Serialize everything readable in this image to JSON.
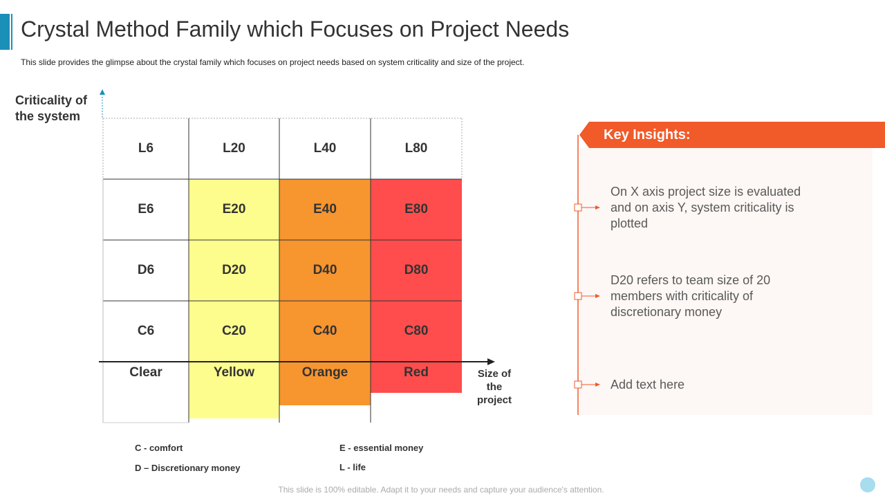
{
  "header": {
    "title": "Crystal Method Family which Focuses on Project Needs",
    "subtitle": "This slide provides  the glimpse about the crystal family which focuses on project needs based on system criticality and size of the project."
  },
  "diagram": {
    "y_axis_label": "Criticality of the system",
    "x_axis_label": "Size of the project",
    "rows": [
      [
        "L6",
        "L20",
        "L40",
        "L80"
      ],
      [
        "E6",
        "E20",
        "E40",
        "E80"
      ],
      [
        "D6",
        "D20",
        "D40",
        "D80"
      ],
      [
        "C6",
        "C20",
        "C40",
        "C80"
      ]
    ],
    "columns": [
      "Clear",
      "Yellow",
      "Orange",
      "Red"
    ]
  },
  "legend": [
    "C - comfort",
    "E - essential money",
    "D – Discretionary money",
    "L - life"
  ],
  "insights": {
    "title": "Key Insights:",
    "items": [
      "On X axis project size is evaluated and on axis Y, system criticality is plotted",
      "D20 refers to team size of 20 members with criticality of discretionary money",
      "Add text here"
    ]
  },
  "footer": "This slide is 100% editable. Adapt it to your needs and capture your audience's attention."
}
